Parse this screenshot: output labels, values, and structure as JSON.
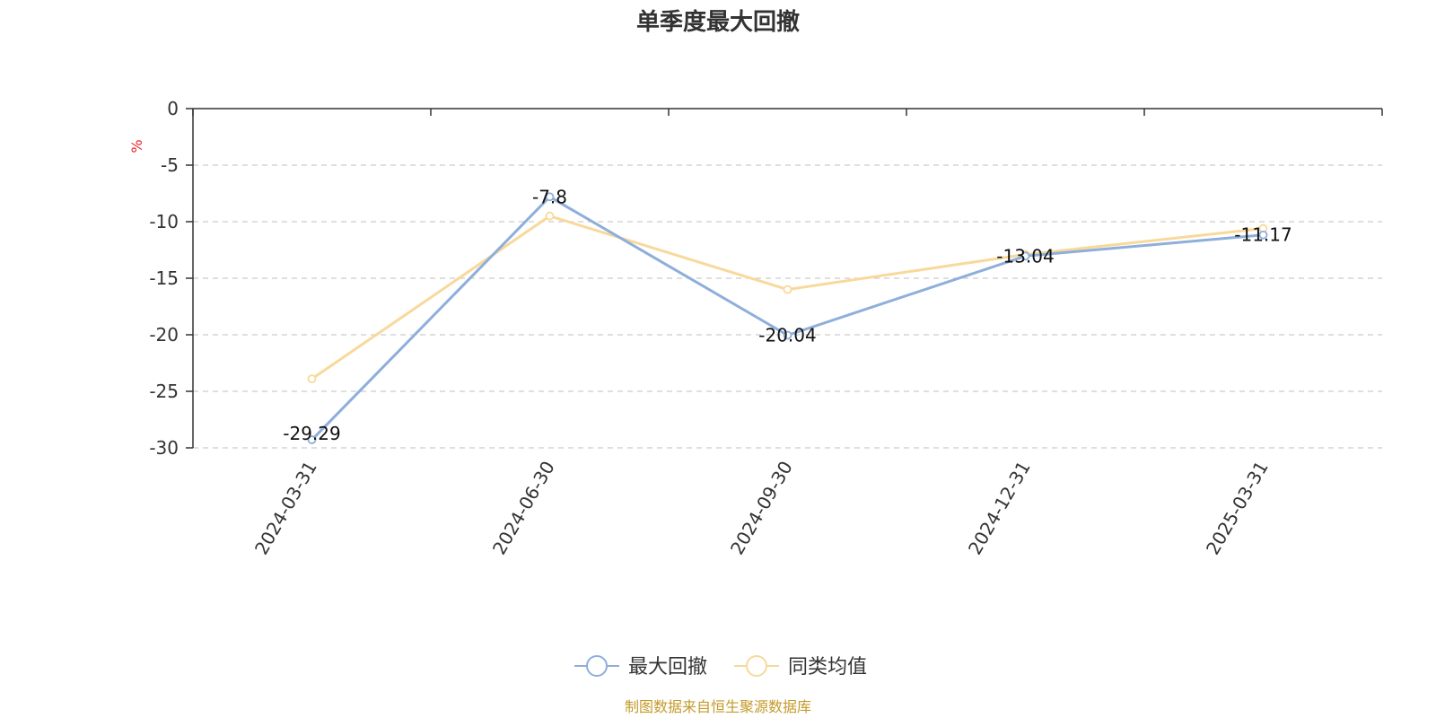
{
  "chart_data": {
    "type": "line",
    "title": "单季度最大回撤",
    "ylabel": "%",
    "categories": [
      "2024-03-31",
      "2024-06-30",
      "2024-09-30",
      "2024-12-31",
      "2025-03-31"
    ],
    "ylim": [
      -30,
      0
    ],
    "yticks": [
      0,
      -5,
      -10,
      -15,
      -20,
      -25,
      -30
    ],
    "grid": true,
    "legend_position": "bottom",
    "series": [
      {
        "name": "最大回撤",
        "color": "#8eaedb",
        "values": [
          -29.29,
          -7.8,
          -20.04,
          -13.04,
          -11.17
        ],
        "labels": [
          "-29.29",
          "-7.8",
          "-20.04",
          "-13.04",
          "-11.17"
        ]
      },
      {
        "name": "同类均值",
        "color": "#f8d99b",
        "values": [
          -23.9,
          -9.5,
          -16.0,
          -12.9,
          -10.6
        ]
      }
    ]
  },
  "footer": {
    "source": "制图数据来自恒生聚源数据库"
  }
}
